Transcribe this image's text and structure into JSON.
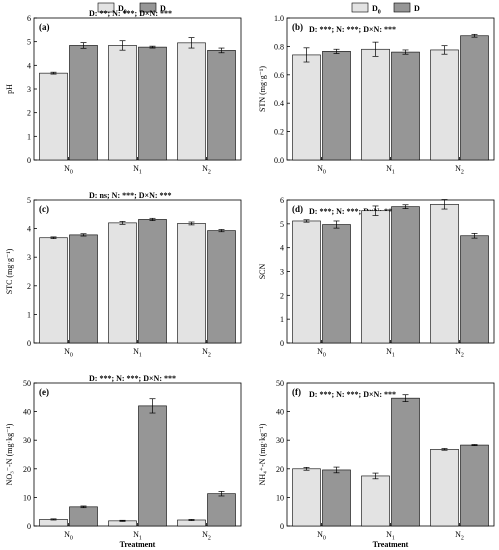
{
  "colors": {
    "d0": "#e3e3e3",
    "d": "#969696",
    "axis": "#000000"
  },
  "legend": {
    "d0": {
      "base": "D",
      "sub": "0"
    },
    "d": {
      "base": "D"
    }
  },
  "xlabel": "Treatment",
  "chart_data": [
    {
      "type": "bar",
      "panel": "(a)",
      "anova": "D: **; N: ***; D×N: ***",
      "ylabel": "pH",
      "categories": [
        {
          "base": "N",
          "sub": "0"
        },
        {
          "base": "N",
          "sub": "1"
        },
        {
          "base": "N",
          "sub": "2"
        }
      ],
      "ylim": [
        0,
        6
      ],
      "yticks": [
        0,
        1,
        2,
        3,
        4,
        5,
        6
      ],
      "series": [
        {
          "key": "d0",
          "values": [
            3.67,
            4.84,
            4.95
          ],
          "errors": [
            0.04,
            0.2,
            0.22
          ]
        },
        {
          "key": "d",
          "values": [
            4.84,
            4.77,
            4.63
          ],
          "errors": [
            0.12,
            0.04,
            0.1
          ]
        }
      ]
    },
    {
      "type": "bar",
      "panel": "(b)",
      "anova": "D: ***; N: ***; D×N: ***",
      "ylabel": "STN (mg·g⁻¹)",
      "categories": [
        {
          "base": "N",
          "sub": "0"
        },
        {
          "base": "N",
          "sub": "1"
        },
        {
          "base": "N",
          "sub": "2"
        }
      ],
      "ylim": [
        0,
        1.0
      ],
      "yticks": [
        0,
        0.2,
        0.4,
        0.6,
        0.8,
        1.0
      ],
      "series": [
        {
          "key": "d0",
          "values": [
            0.74,
            0.78,
            0.775
          ],
          "errors": [
            0.05,
            0.05,
            0.03
          ]
        },
        {
          "key": "d",
          "values": [
            0.765,
            0.76,
            0.875
          ],
          "errors": [
            0.015,
            0.015,
            0.01
          ]
        }
      ]
    },
    {
      "type": "bar",
      "panel": "(c)",
      "anova": "D: ns; N: ***; D×N: ***",
      "ylabel": "STC (mg·g⁻¹)",
      "categories": [
        {
          "base": "N",
          "sub": "0"
        },
        {
          "base": "N",
          "sub": "1"
        },
        {
          "base": "N",
          "sub": "2"
        }
      ],
      "ylim": [
        0,
        5
      ],
      "yticks": [
        0,
        1,
        2,
        3,
        4,
        5
      ],
      "series": [
        {
          "key": "d0",
          "values": [
            3.68,
            4.2,
            4.18
          ],
          "errors": [
            0.03,
            0.05,
            0.05
          ]
        },
        {
          "key": "d",
          "values": [
            3.78,
            4.32,
            3.93
          ],
          "errors": [
            0.04,
            0.04,
            0.04
          ]
        }
      ]
    },
    {
      "type": "bar",
      "panel": "(d)",
      "anova": "D: ***; N: ***; D×N: ***",
      "ylabel": "SCN",
      "categories": [
        {
          "base": "N",
          "sub": "0"
        },
        {
          "base": "N",
          "sub": "1"
        },
        {
          "base": "N",
          "sub": "2"
        }
      ],
      "ylim": [
        0,
        6
      ],
      "yticks": [
        0,
        1,
        2,
        3,
        4,
        5,
        6
      ],
      "series": [
        {
          "key": "d0",
          "values": [
            5.12,
            5.55,
            5.82
          ],
          "errors": [
            0.05,
            0.2,
            0.2
          ]
        },
        {
          "key": "d",
          "values": [
            4.97,
            5.72,
            4.5
          ],
          "errors": [
            0.15,
            0.08,
            0.1
          ]
        }
      ]
    },
    {
      "type": "bar",
      "panel": "(e)",
      "anova": "D: ***; N: ***; D×N: ***",
      "ylabel": "NO₃⁻-N (mg·kg⁻¹)",
      "categories": [
        {
          "base": "N",
          "sub": "0"
        },
        {
          "base": "N",
          "sub": "1"
        },
        {
          "base": "N",
          "sub": "2"
        }
      ],
      "ylim": [
        0,
        50
      ],
      "yticks": [
        0,
        10,
        20,
        30,
        40,
        50
      ],
      "series": [
        {
          "key": "d0",
          "values": [
            2.3,
            1.8,
            2.1
          ],
          "errors": [
            0.2,
            0.2,
            0.2
          ]
        },
        {
          "key": "d",
          "values": [
            6.7,
            42.0,
            11.3
          ],
          "errors": [
            0.3,
            2.5,
            0.8
          ]
        }
      ]
    },
    {
      "type": "bar",
      "panel": "(f)",
      "anova": "D: ***; N: ***; D×N: ***",
      "ylabel": "NH₄⁺-N (mg·kg⁻¹)",
      "categories": [
        {
          "base": "N",
          "sub": "0"
        },
        {
          "base": "N",
          "sub": "1"
        },
        {
          "base": "N",
          "sub": "2"
        }
      ],
      "ylim": [
        0,
        50
      ],
      "yticks": [
        0,
        10,
        20,
        30,
        40,
        50
      ],
      "series": [
        {
          "key": "d0",
          "values": [
            20.0,
            17.5,
            26.8
          ],
          "errors": [
            0.5,
            1.0,
            0.3
          ]
        },
        {
          "key": "d",
          "values": [
            19.6,
            44.7,
            28.3
          ],
          "errors": [
            1.0,
            1.2,
            0.2
          ]
        }
      ]
    }
  ]
}
